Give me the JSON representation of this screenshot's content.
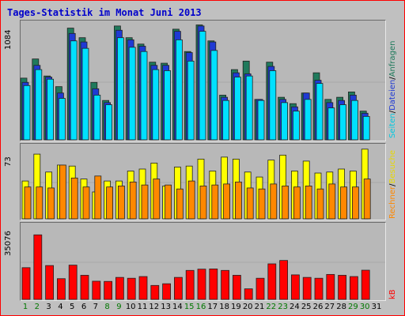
{
  "title": "Tages-Statistik im Monat Juni 2013",
  "colors": {
    "frame_border": "#ff0000",
    "background": "#c0c0c0",
    "panel": "#b8b8b8",
    "anfragen": "#1f7a5c",
    "dateien": "#1f3ad4",
    "seiten": "#00e0ff",
    "besuche": "#ffff00",
    "rechner": "#ff8800",
    "kb": "#ff0000",
    "weekend_label": "#007700"
  },
  "legend_top": [
    "Seiten",
    "/",
    "Dateien",
    "/",
    "Anfragen"
  ],
  "legend_mid": [
    "Rechner",
    "/",
    "Besuche"
  ],
  "legend_bot": [
    "kB"
  ],
  "chart_data": [
    {
      "type": "bar",
      "name": "top",
      "ymax_label": "1084",
      "ylim": [
        0,
        1084
      ],
      "categories": [
        "1",
        "2",
        "3",
        "4",
        "5",
        "6",
        "7",
        "8",
        "9",
        "10",
        "11",
        "12",
        "13",
        "14",
        "15",
        "16",
        "17",
        "18",
        "19",
        "20",
        "21",
        "22",
        "23",
        "24",
        "25",
        "26",
        "27",
        "28",
        "29",
        "30",
        "31"
      ],
      "series": [
        {
          "name": "Anfragen",
          "values": [
            580,
            760,
            600,
            500,
            1050,
            960,
            540,
            370,
            1070,
            960,
            900,
            730,
            720,
            1040,
            830,
            1080,
            930,
            420,
            660,
            740,
            380,
            730,
            400,
            340,
            440,
            630,
            380,
            400,
            450,
            270,
            0
          ]
        },
        {
          "name": "Dateien",
          "values": [
            540,
            700,
            590,
            440,
            1000,
            920,
            480,
            350,
            1030,
            940,
            880,
            700,
            700,
            1020,
            820,
            1070,
            920,
            400,
            630,
            620,
            380,
            690,
            380,
            310,
            440,
            560,
            350,
            370,
            420,
            250,
            0
          ]
        },
        {
          "name": "Seiten",
          "values": [
            510,
            660,
            570,
            390,
            930,
            860,
            420,
            330,
            960,
            870,
            830,
            660,
            650,
            940,
            740,
            1020,
            840,
            370,
            590,
            600,
            370,
            650,
            350,
            270,
            380,
            530,
            300,
            330,
            370,
            220,
            0
          ]
        }
      ]
    },
    {
      "type": "bar",
      "name": "middle",
      "ymax_label": "73",
      "ylim": [
        0,
        73
      ],
      "categories": [
        "1",
        "2",
        "3",
        "4",
        "5",
        "6",
        "7",
        "8",
        "9",
        "10",
        "11",
        "12",
        "13",
        "14",
        "15",
        "16",
        "17",
        "18",
        "19",
        "20",
        "21",
        "22",
        "23",
        "24",
        "25",
        "26",
        "27",
        "28",
        "29",
        "30",
        "31"
      ],
      "series": [
        {
          "name": "Besuche",
          "values": [
            38,
            65,
            47,
            54,
            53,
            40,
            27,
            38,
            38,
            48,
            50,
            56,
            33,
            52,
            53,
            60,
            48,
            62,
            60,
            47,
            42,
            59,
            64,
            48,
            58,
            46,
            47,
            50,
            48,
            70,
            0
          ]
        },
        {
          "name": "Rechner",
          "values": [
            32,
            32,
            31,
            54,
            41,
            32,
            43,
            32,
            33,
            37,
            34,
            40,
            34,
            30,
            38,
            33,
            34,
            35,
            37,
            31,
            30,
            35,
            33,
            32,
            33,
            30,
            35,
            32,
            32,
            40,
            0
          ]
        }
      ]
    },
    {
      "type": "bar",
      "name": "bottom",
      "ymax_label": "35076",
      "ylim": [
        0,
        35076
      ],
      "categories": [
        "1",
        "2",
        "3",
        "4",
        "5",
        "6",
        "7",
        "8",
        "9",
        "10",
        "11",
        "12",
        "13",
        "14",
        "15",
        "16",
        "17",
        "18",
        "19",
        "20",
        "21",
        "22",
        "23",
        "24",
        "25",
        "26",
        "27",
        "28",
        "29",
        "30",
        "31"
      ],
      "series": [
        {
          "name": "kB",
          "values": [
            15000,
            30500,
            16000,
            9800,
            16200,
            11400,
            8600,
            8500,
            10400,
            10000,
            10800,
            6600,
            7400,
            10400,
            13700,
            14300,
            14400,
            13700,
            11400,
            5000,
            10000,
            16800,
            18400,
            11600,
            10400,
            10000,
            11800,
            11400,
            10800,
            13800,
            0
          ]
        }
      ]
    }
  ],
  "x_labels": [
    "1",
    "2",
    "3",
    "4",
    "5",
    "6",
    "7",
    "8",
    "9",
    "10",
    "11",
    "12",
    "13",
    "14",
    "15",
    "16",
    "17",
    "18",
    "19",
    "20",
    "21",
    "22",
    "23",
    "24",
    "25",
    "26",
    "27",
    "28",
    "29",
    "30",
    "31"
  ],
  "weekend_days": [
    "1",
    "2",
    "8",
    "9",
    "15",
    "16",
    "22",
    "23",
    "29",
    "30"
  ]
}
